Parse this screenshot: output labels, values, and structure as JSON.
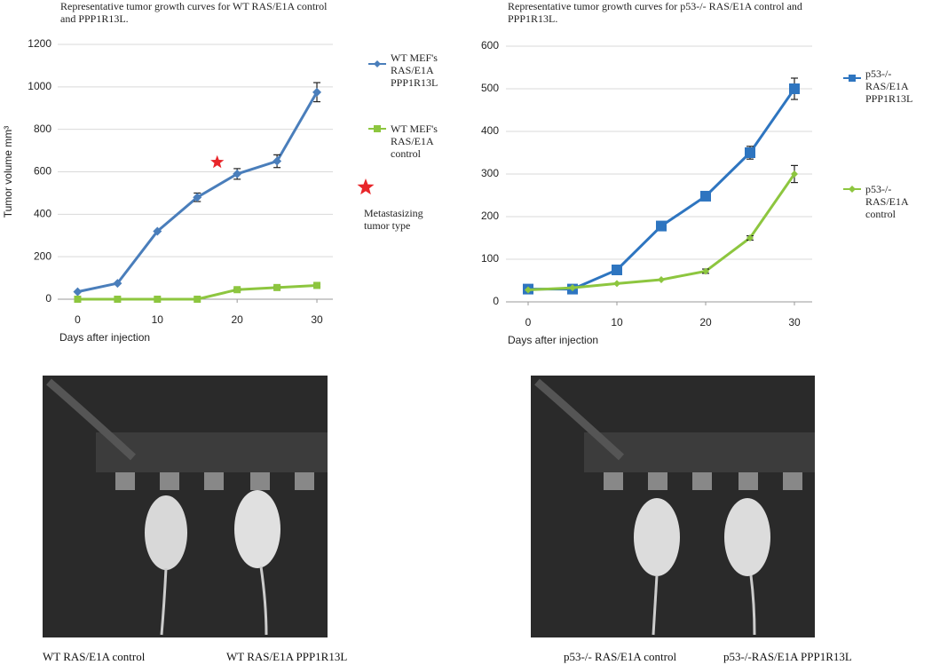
{
  "chart_data": [
    {
      "type": "line",
      "title": "Representative tumor growth curves for WT RAS/E1A control and PPP1R13L.",
      "y_label": "Tumor volume mm³",
      "x_label": "Days after injection",
      "x": [
        0,
        5,
        10,
        15,
        20,
        25,
        30
      ],
      "xlim": [
        -2.5,
        32
      ],
      "xticks": [
        0,
        10,
        20,
        30
      ],
      "ylim": [
        0,
        1200
      ],
      "yticks": [
        0,
        200,
        400,
        600,
        800,
        1000,
        1200
      ],
      "grid": true,
      "series": [
        {
          "name": "WT MEF's RAS/E1A PPP1R13L",
          "color": "#4a7ebb",
          "marker": "diamond",
          "values": [
            35,
            75,
            320,
            480,
            590,
            650,
            975
          ],
          "errors": [
            0,
            0,
            0,
            20,
            25,
            30,
            45
          ]
        },
        {
          "name": "WT MEF's RAS/E1A control",
          "color": "#8dc63f",
          "marker": "square",
          "values": [
            0,
            0,
            0,
            0,
            45,
            55,
            65
          ],
          "errors": [
            0,
            0,
            0,
            0,
            5,
            5,
            5
          ]
        }
      ],
      "annotation": {
        "text": "Metastasizing tumor type",
        "x": 17.5,
        "y": 645,
        "color": "#e8262a"
      }
    },
    {
      "type": "line",
      "title": "Representative tumor growth curves for p53-/- RAS/E1A control and PPP1R13L.",
      "x_label": "Days after injection",
      "x": [
        0,
        5,
        10,
        15,
        20,
        25,
        30
      ],
      "xlim": [
        -2.5,
        32
      ],
      "xticks": [
        0,
        10,
        20,
        30
      ],
      "ylim": [
        0,
        600
      ],
      "yticks": [
        0,
        100,
        200,
        300,
        400,
        500,
        600
      ],
      "grid": true,
      "series": [
        {
          "name": "p53-/- RAS/E1A PPP1R13L",
          "color": "#2e75c0",
          "marker": "square",
          "values": [
            30,
            30,
            75,
            178,
            248,
            350,
            500
          ],
          "errors": [
            0,
            0,
            5,
            5,
            5,
            15,
            25
          ]
        },
        {
          "name": "p53-/- RAS/E1A control",
          "color": "#8dc63f",
          "marker": "diamond",
          "values": [
            28,
            33,
            43,
            52,
            72,
            150,
            300
          ],
          "errors": [
            0,
            0,
            0,
            0,
            5,
            5,
            20
          ]
        }
      ]
    }
  ],
  "captions": [
    "WT RAS/E1A control",
    "WT RAS/E1A PPP1R13L",
    "p53-/- RAS/E1A control",
    "p53-/-RAS/E1A PPP1R13L"
  ]
}
